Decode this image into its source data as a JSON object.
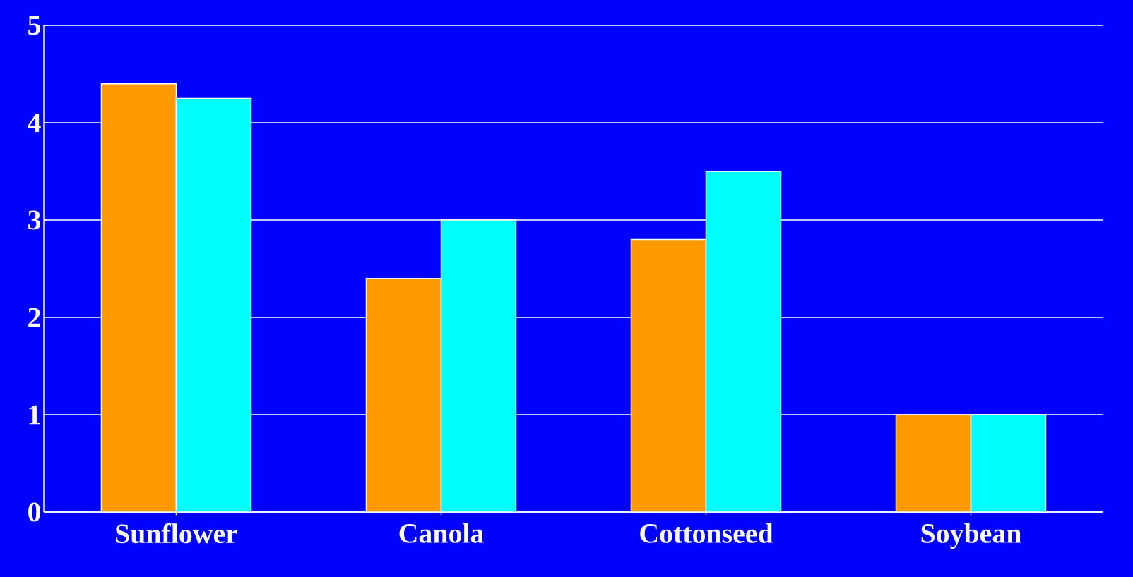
{
  "chart_data": {
    "type": "bar",
    "categories": [
      "Sunflower",
      "Canola",
      "Cottonseed",
      "Soybean"
    ],
    "series": [
      {
        "color": "#ff9900",
        "values": [
          4.4,
          2.4,
          2.8,
          1.0
        ]
      },
      {
        "color": "#00ffff",
        "values": [
          4.25,
          3.0,
          3.5,
          1.0
        ]
      }
    ],
    "ylim": [
      0,
      5
    ],
    "yticks": [
      0,
      1,
      2,
      3,
      4,
      5
    ],
    "grid": "y"
  }
}
